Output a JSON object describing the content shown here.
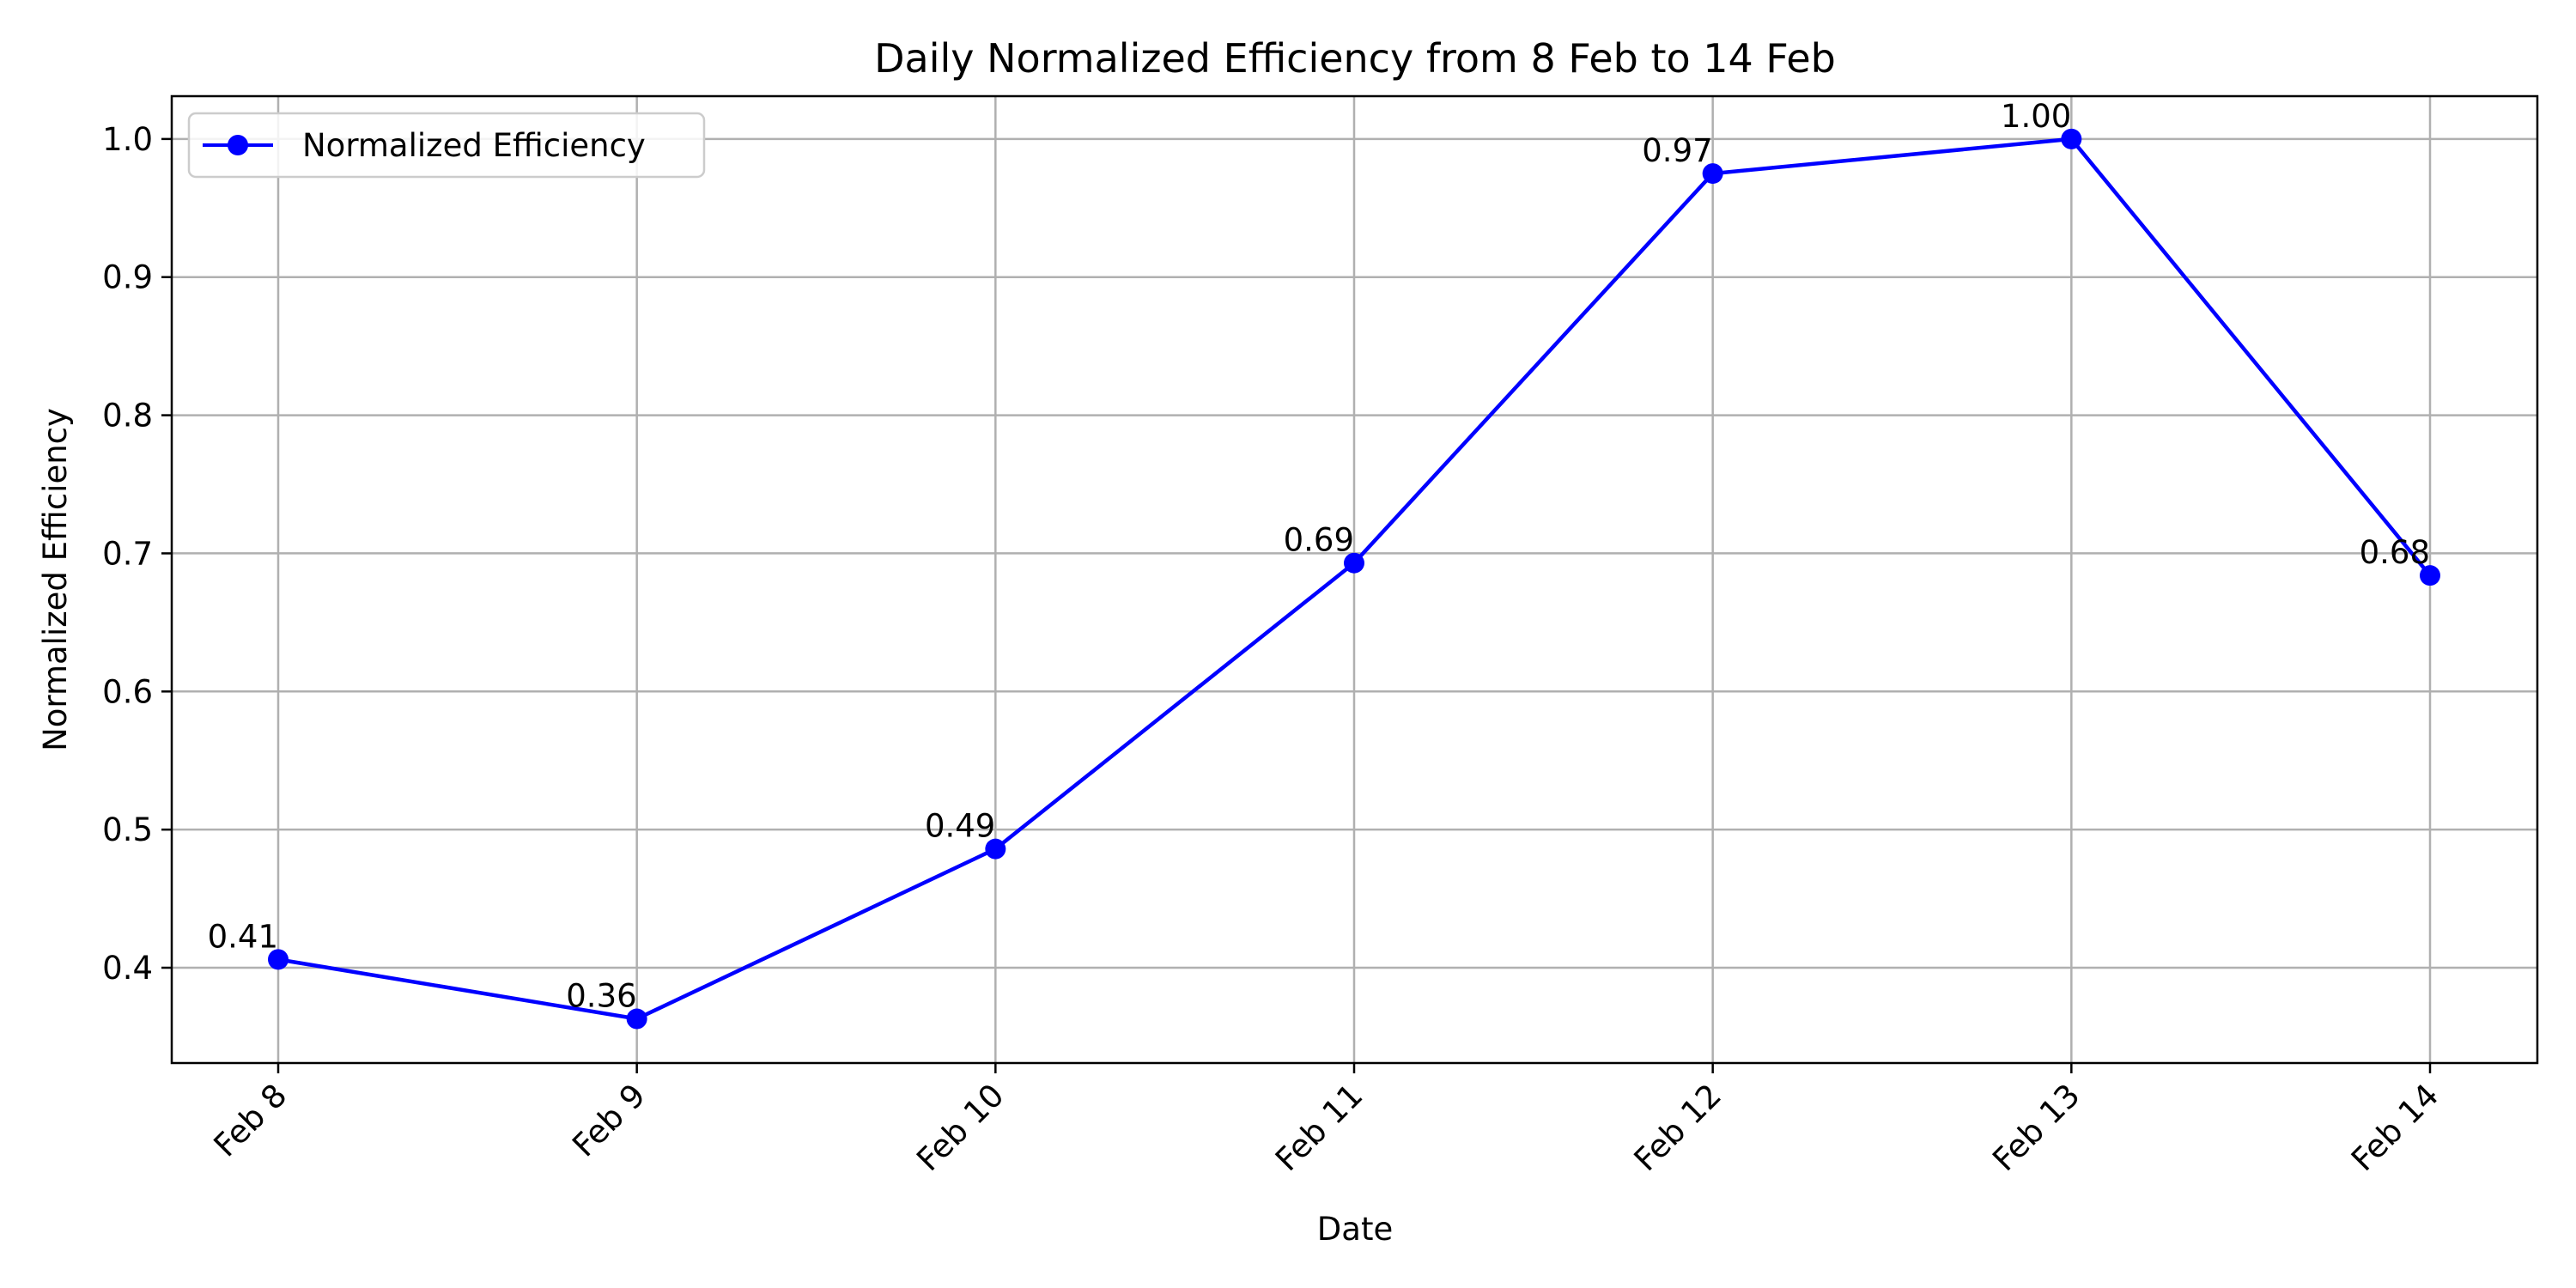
{
  "chart_data": {
    "type": "line",
    "title": "Daily Normalized Efficiency from 8 Feb to 14 Feb",
    "xlabel": "Date",
    "ylabel": "Normalized Efficiency",
    "categories": [
      "Feb 8",
      "Feb 9",
      "Feb 10",
      "Feb 11",
      "Feb 12",
      "Feb 13",
      "Feb 14"
    ],
    "series": [
      {
        "name": "Normalized Efficiency",
        "values": [
          0.406,
          0.363,
          0.486,
          0.693,
          0.975,
          1.0,
          0.684
        ],
        "labels": [
          "0.41",
          "0.36",
          "0.49",
          "0.69",
          "0.97",
          "1.00",
          "0.68"
        ],
        "color": "#0000ff"
      }
    ],
    "ylim": [
      0.331,
      1.031
    ],
    "yticks": [
      0.4,
      0.5,
      0.6,
      0.7,
      0.8,
      0.9,
      1.0
    ],
    "ytick_labels": [
      "0.4",
      "0.5",
      "0.6",
      "0.7",
      "0.8",
      "0.9",
      "1.0"
    ],
    "grid": true,
    "legend_position": "top-left",
    "x_tick_rotation": "45 degrees"
  }
}
